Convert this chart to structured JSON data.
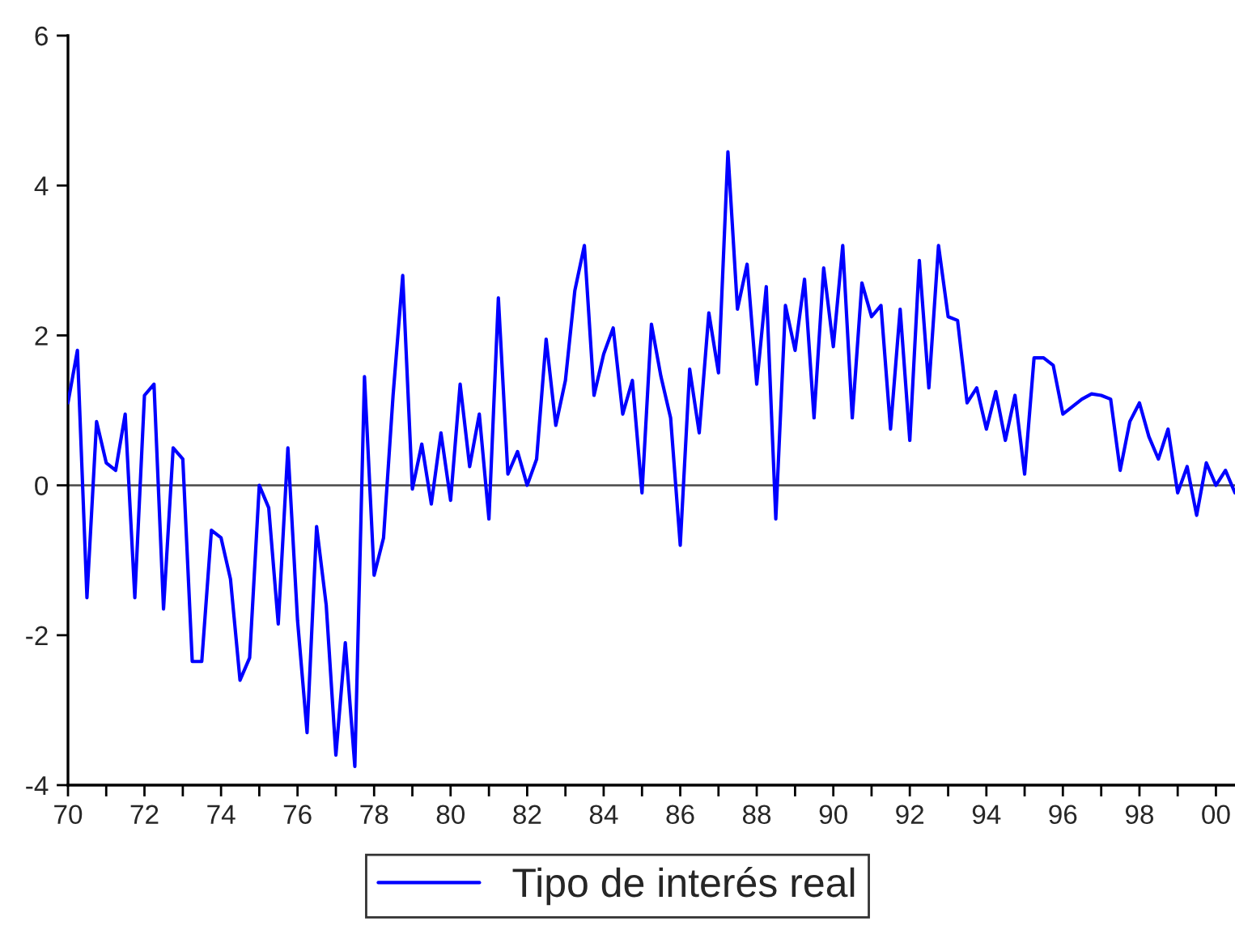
{
  "chart_data": {
    "type": "line",
    "x": [
      "1970-01",
      "1970-04",
      "1970-07",
      "1970-10",
      "1971-01",
      "1971-04",
      "1971-07",
      "1971-10",
      "1972-01",
      "1972-04",
      "1972-07",
      "1972-10",
      "1973-01",
      "1973-04",
      "1973-07",
      "1973-10",
      "1974-01",
      "1974-04",
      "1974-07",
      "1974-10",
      "1975-01",
      "1975-04",
      "1975-07",
      "1975-10",
      "1976-01",
      "1976-04",
      "1976-07",
      "1976-10",
      "1977-01",
      "1977-04",
      "1977-07",
      "1977-10",
      "1978-01",
      "1978-04",
      "1978-07",
      "1978-10",
      "1979-01",
      "1979-04",
      "1979-07",
      "1979-10",
      "1980-01",
      "1980-04",
      "1980-07",
      "1980-10",
      "1981-01",
      "1981-04",
      "1981-07",
      "1981-10",
      "1982-01",
      "1982-04",
      "1982-07",
      "1982-10",
      "1983-01",
      "1983-04",
      "1983-07",
      "1983-10",
      "1984-01",
      "1984-04",
      "1984-07",
      "1984-10",
      "1985-01",
      "1985-04",
      "1985-07",
      "1985-10",
      "1986-01",
      "1986-04",
      "1986-07",
      "1986-10",
      "1987-01",
      "1987-04",
      "1987-07",
      "1987-10",
      "1988-01",
      "1988-04",
      "1988-07",
      "1988-10",
      "1989-01",
      "1989-04",
      "1989-07",
      "1989-10",
      "1990-01",
      "1990-04",
      "1990-07",
      "1990-10",
      "1991-01",
      "1991-04",
      "1991-07",
      "1991-10",
      "1992-01",
      "1992-04",
      "1992-07",
      "1992-10",
      "1993-01",
      "1993-04",
      "1993-07",
      "1993-10",
      "1994-01",
      "1994-04",
      "1994-07",
      "1994-10",
      "1995-01",
      "1995-04",
      "1995-07",
      "1995-10",
      "1996-01",
      "1996-04",
      "1996-07",
      "1996-10",
      "1997-01",
      "1997-04",
      "1997-07",
      "1997-10",
      "1998-01",
      "1998-04",
      "1998-07",
      "1998-10",
      "1999-01",
      "1999-04",
      "1999-07",
      "1999-10",
      "2000-01",
      "2000-04",
      "2000-07"
    ],
    "series": [
      {
        "name": "Tipo de interés real",
        "color": "#0000ff",
        "values": [
          1.1,
          1.8,
          -1.5,
          0.85,
          0.3,
          0.2,
          0.95,
          -1.5,
          1.2,
          1.35,
          -1.65,
          0.5,
          0.35,
          -2.35,
          -2.35,
          -0.6,
          -0.7,
          -1.25,
          -2.6,
          -2.3,
          0.0,
          -0.3,
          -1.85,
          0.5,
          -1.8,
          -3.3,
          -0.55,
          -1.6,
          -3.6,
          -2.1,
          -3.75,
          1.45,
          -1.2,
          -0.7,
          1.2,
          2.8,
          -0.05,
          0.55,
          -0.25,
          0.7,
          -0.2,
          1.35,
          0.25,
          0.95,
          -0.45,
          2.5,
          0.15,
          0.45,
          0.0,
          0.35,
          1.95,
          0.8,
          1.4,
          2.6,
          3.2,
          1.2,
          1.75,
          2.1,
          0.95,
          1.4,
          -0.1,
          2.15,
          1.45,
          0.9,
          -0.8,
          1.55,
          0.7,
          2.3,
          1.5,
          4.45,
          2.35,
          2.95,
          1.35,
          2.65,
          -0.45,
          2.4,
          1.8,
          2.75,
          0.9,
          2.9,
          1.85,
          3.2,
          0.9,
          2.7,
          2.25,
          2.4,
          0.75,
          2.35,
          0.6,
          3.0,
          1.3,
          3.2,
          2.25,
          2.2,
          1.1,
          1.3,
          0.75,
          1.25,
          0.6,
          1.2,
          0.15,
          1.7,
          1.7,
          1.6,
          0.95,
          1.05,
          1.15,
          1.22,
          1.2,
          1.15,
          0.2,
          0.85,
          1.1,
          0.65,
          0.35,
          0.75,
          -0.1,
          0.25,
          -0.4,
          0.3,
          0.0,
          0.2,
          -0.1
        ]
      }
    ],
    "xlim": [
      "1970-01",
      "2000-07"
    ],
    "xticks": [
      {
        "value": "1970",
        "label": "70"
      },
      {
        "value": "1971",
        "label": null
      },
      {
        "value": "1972",
        "label": "72"
      },
      {
        "value": "1973",
        "label": null
      },
      {
        "value": "1974",
        "label": "74"
      },
      {
        "value": "1975",
        "label": null
      },
      {
        "value": "1976",
        "label": "76"
      },
      {
        "value": "1977",
        "label": null
      },
      {
        "value": "1978",
        "label": "78"
      },
      {
        "value": "1979",
        "label": null
      },
      {
        "value": "1980",
        "label": "80"
      },
      {
        "value": "1981",
        "label": null
      },
      {
        "value": "1982",
        "label": "82"
      },
      {
        "value": "1983",
        "label": null
      },
      {
        "value": "1984",
        "label": "84"
      },
      {
        "value": "1985",
        "label": null
      },
      {
        "value": "1986",
        "label": "86"
      },
      {
        "value": "1987",
        "label": null
      },
      {
        "value": "1988",
        "label": "88"
      },
      {
        "value": "1989",
        "label": null
      },
      {
        "value": "1990",
        "label": "90"
      },
      {
        "value": "1991",
        "label": null
      },
      {
        "value": "1992",
        "label": "92"
      },
      {
        "value": "1993",
        "label": null
      },
      {
        "value": "1994",
        "label": "94"
      },
      {
        "value": "1995",
        "label": null
      },
      {
        "value": "1996",
        "label": "96"
      },
      {
        "value": "1997",
        "label": null
      },
      {
        "value": "1998",
        "label": "98"
      },
      {
        "value": "1999",
        "label": null
      },
      {
        "value": "2000",
        "label": "00"
      }
    ],
    "ylim": [
      -4,
      6
    ],
    "yticks": [
      -4,
      -2,
      0,
      2,
      4,
      6
    ],
    "ref_lines": [
      {
        "axis": "y",
        "value": 0,
        "color": "#555555"
      }
    ],
    "grid": false,
    "legend": "bottom"
  }
}
